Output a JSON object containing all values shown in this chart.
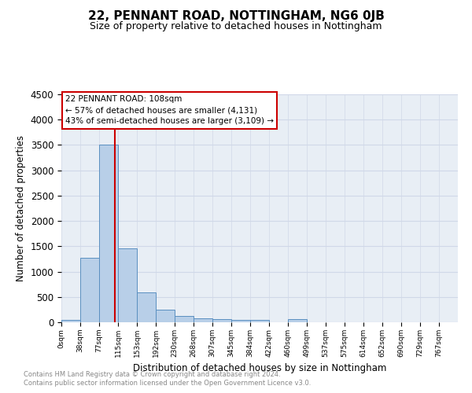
{
  "title": "22, PENNANT ROAD, NOTTINGHAM, NG6 0JB",
  "subtitle": "Size of property relative to detached houses in Nottingham",
  "xlabel": "Distribution of detached houses by size in Nottingham",
  "ylabel": "Number of detached properties",
  "footnote1": "Contains HM Land Registry data © Crown copyright and database right 2024.",
  "footnote2": "Contains public sector information licensed under the Open Government Licence v3.0.",
  "bin_labels": [
    "0sqm",
    "38sqm",
    "77sqm",
    "115sqm",
    "153sqm",
    "192sqm",
    "230sqm",
    "268sqm",
    "307sqm",
    "345sqm",
    "384sqm",
    "422sqm",
    "460sqm",
    "499sqm",
    "537sqm",
    "575sqm",
    "614sqm",
    "652sqm",
    "690sqm",
    "729sqm",
    "767sqm"
  ],
  "bar_heights": [
    50,
    1280,
    3500,
    1460,
    590,
    250,
    130,
    85,
    55,
    45,
    45,
    0,
    55,
    0,
    0,
    0,
    0,
    0,
    0,
    0,
    0
  ],
  "bar_color": "#b8cfe8",
  "bar_edge_color": "#5a8fc0",
  "ylim": [
    0,
    4500
  ],
  "yticks": [
    0,
    500,
    1000,
    1500,
    2000,
    2500,
    3000,
    3500,
    4000,
    4500
  ],
  "annotation_text": "22 PENNANT ROAD: 108sqm\n← 57% of detached houses are smaller (4,131)\n43% of semi-detached houses are larger (3,109) →",
  "annotation_box_color": "#ffffff",
  "annotation_box_edge": "#cc0000",
  "vline_color": "#cc0000",
  "grid_color": "#d0d8e8",
  "bg_color": "#e8eef5",
  "title_fontsize": 11,
  "subtitle_fontsize": 9,
  "footnote_color": "#888888"
}
